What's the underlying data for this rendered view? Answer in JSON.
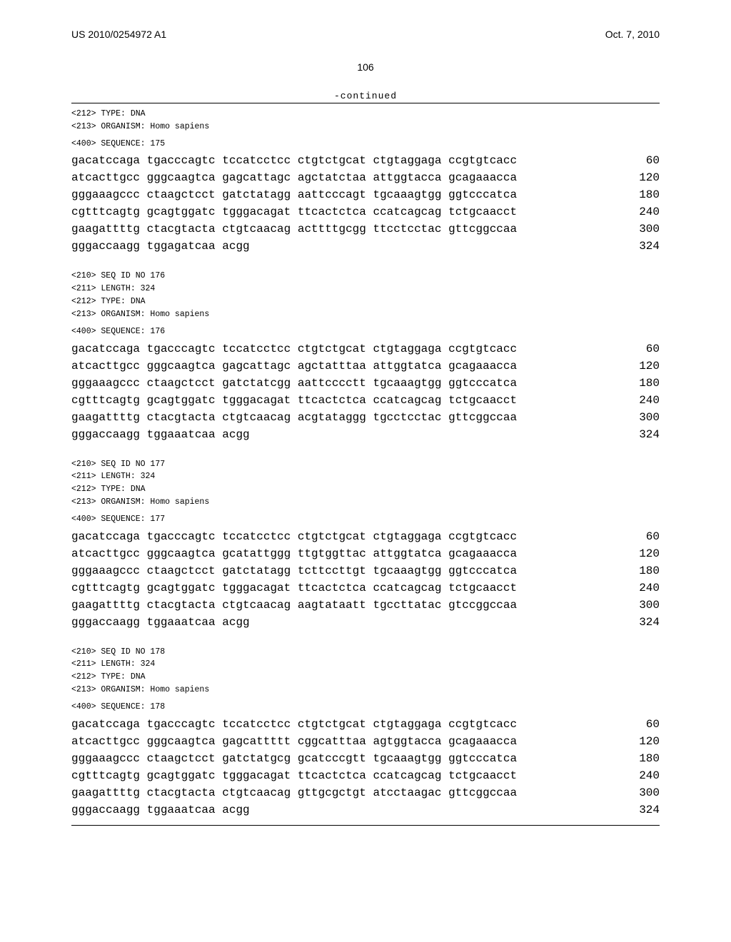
{
  "header": {
    "publication_number": "US 2010/0254972 A1",
    "publication_date": "Oct. 7, 2010",
    "page_number": "106",
    "continued_label": "-continued"
  },
  "colors": {
    "text": "#000000",
    "background": "#ffffff",
    "rule": "#000000"
  },
  "typography": {
    "mono_font": "Courier New",
    "mono_size_pt": 9,
    "sans_font": "Arial",
    "header_size_pt": 11
  },
  "entries": [
    {
      "preamble": [
        "<212> TYPE: DNA",
        "<213> ORGANISM: Homo sapiens"
      ],
      "sequence_header": "<400> SEQUENCE: 175",
      "lines": [
        {
          "seq": "gacatccaga tgacccagtc tccatcctcc ctgtctgcat ctgtaggaga ccgtgtcacc",
          "n": "60"
        },
        {
          "seq": "atcacttgcc gggcaagtca gagcattagc agctatctaa attggtacca gcagaaacca",
          "n": "120"
        },
        {
          "seq": "gggaaagccc ctaagctcct gatctatagg aattcccagt tgcaaagtgg ggtcccatca",
          "n": "180"
        },
        {
          "seq": "cgtttcagtg gcagtggatc tgggacagat ttcactctca ccatcagcag tctgcaacct",
          "n": "240"
        },
        {
          "seq": "gaagattttg ctacgtacta ctgtcaacag acttttgcgg ttcctcctac gttcggccaa",
          "n": "300"
        },
        {
          "seq": "gggaccaagg tggagatcaa acgg",
          "n": "324"
        }
      ]
    },
    {
      "preamble": [
        "<210> SEQ ID NO 176",
        "<211> LENGTH: 324",
        "<212> TYPE: DNA",
        "<213> ORGANISM: Homo sapiens"
      ],
      "sequence_header": "<400> SEQUENCE: 176",
      "lines": [
        {
          "seq": "gacatccaga tgacccagtc tccatcctcc ctgtctgcat ctgtaggaga ccgtgtcacc",
          "n": "60"
        },
        {
          "seq": "atcacttgcc gggcaagtca gagcattagc agctatttaa attggtatca gcagaaacca",
          "n": "120"
        },
        {
          "seq": "gggaaagccc ctaagctcct gatctatcgg aattcccctt tgcaaagtgg ggtcccatca",
          "n": "180"
        },
        {
          "seq": "cgtttcagtg gcagtggatc tgggacagat ttcactctca ccatcagcag tctgcaacct",
          "n": "240"
        },
        {
          "seq": "gaagattttg ctacgtacta ctgtcaacag acgtataggg tgcctcctac gttcggccaa",
          "n": "300"
        },
        {
          "seq": "gggaccaagg tggaaatcaa acgg",
          "n": "324"
        }
      ]
    },
    {
      "preamble": [
        "<210> SEQ ID NO 177",
        "<211> LENGTH: 324",
        "<212> TYPE: DNA",
        "<213> ORGANISM: Homo sapiens"
      ],
      "sequence_header": "<400> SEQUENCE: 177",
      "lines": [
        {
          "seq": "gacatccaga tgacccagtc tccatcctcc ctgtctgcat ctgtaggaga ccgtgtcacc",
          "n": "60"
        },
        {
          "seq": "atcacttgcc gggcaagtca gcatattggg ttgtggttac attggtatca gcagaaacca",
          "n": "120"
        },
        {
          "seq": "gggaaagccc ctaagctcct gatctatagg tcttccttgt tgcaaagtgg ggtcccatca",
          "n": "180"
        },
        {
          "seq": "cgtttcagtg gcagtggatc tgggacagat ttcactctca ccatcagcag tctgcaacct",
          "n": "240"
        },
        {
          "seq": "gaagattttg ctacgtacta ctgtcaacag aagtataatt tgccttatac gtccggccaa",
          "n": "300"
        },
        {
          "seq": "gggaccaagg tggaaatcaa acgg",
          "n": "324"
        }
      ]
    },
    {
      "preamble": [
        "<210> SEQ ID NO 178",
        "<211> LENGTH: 324",
        "<212> TYPE: DNA",
        "<213> ORGANISM: Homo sapiens"
      ],
      "sequence_header": "<400> SEQUENCE: 178",
      "lines": [
        {
          "seq": "gacatccaga tgacccagtc tccatcctcc ctgtctgcat ctgtaggaga ccgtgtcacc",
          "n": "60"
        },
        {
          "seq": "atcacttgcc gggcaagtca gagcattttt cggcatttaa agtggtacca gcagaaacca",
          "n": "120"
        },
        {
          "seq": "gggaaagccc ctaagctcct gatctatgcg gcatcccgtt tgcaaagtgg ggtcccatca",
          "n": "180"
        },
        {
          "seq": "cgtttcagtg gcagtggatc tgggacagat ttcactctca ccatcagcag tctgcaacct",
          "n": "240"
        },
        {
          "seq": "gaagattttg ctacgtacta ctgtcaacag gttgcgctgt atcctaagac gttcggccaa",
          "n": "300"
        },
        {
          "seq": "gggaccaagg tggaaatcaa acgg",
          "n": "324"
        }
      ]
    }
  ]
}
